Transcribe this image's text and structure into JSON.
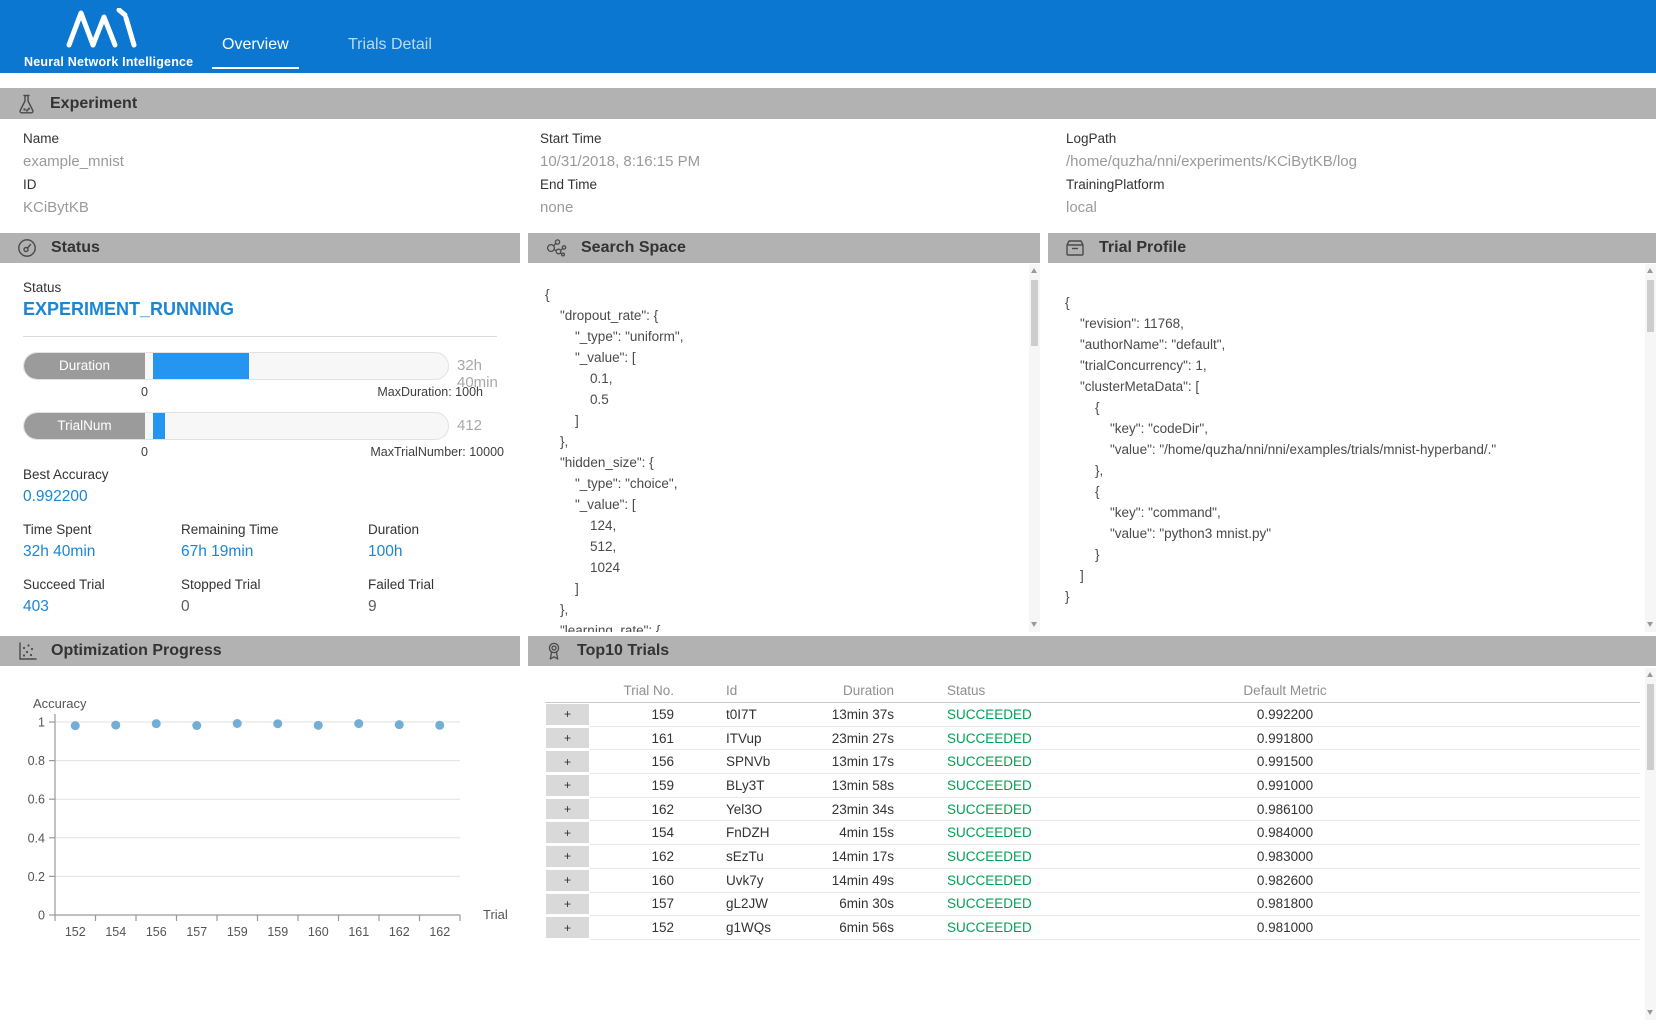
{
  "header": {
    "brand": "Neural Network Intelligence",
    "tabs": [
      {
        "label": "Overview",
        "active": true
      },
      {
        "label": "Trials Detail",
        "active": false
      }
    ]
  },
  "colors": {
    "header_blue": "#0c77d1",
    "accent_blue": "#1a86d4",
    "progress_blue": "#2496f2",
    "succeeded_green": "#00a152",
    "section_header_gray": "#b2b2b2",
    "scatter_point_blue": "#64a5d3"
  },
  "icons": {
    "logo": "nni-logo-icon",
    "experiment": "flask-icon",
    "status": "gauge-icon",
    "search_space": "molecule-icon",
    "trial_profile": "window-icon",
    "optimization": "scatter-chart-icon",
    "top10": "medal-icon"
  },
  "experiment": {
    "title": "Experiment",
    "fields": [
      {
        "label": "Name",
        "value": "example_mnist"
      },
      {
        "label": "ID",
        "value": "KCiBytKB"
      },
      {
        "label": "Start Time",
        "value": "10/31/2018, 8:16:15 PM"
      },
      {
        "label": "End Time",
        "value": "none"
      },
      {
        "label": "LogPath",
        "value": "/home/quzha/nni/experiments/KCiBytKB/log"
      },
      {
        "label": "TrainingPlatform",
        "value": "local"
      }
    ]
  },
  "status_panel": {
    "title": "Status",
    "status_label": "Status",
    "status_value": "EXPERIMENT_RUNNING",
    "bars": [
      {
        "label": "Duration",
        "value_text": "32h 40min",
        "min_label": "0",
        "max_label": "MaxDuration: 100h",
        "percent": 32.7
      },
      {
        "label": "TrialNum",
        "value_text": "412",
        "min_label": "0",
        "max_label": "MaxTrialNumber: 10000",
        "percent": 4.1
      }
    ],
    "best_accuracy_label": "Best Accuracy",
    "best_accuracy_value": "0.992200",
    "stats": [
      {
        "label": "Time Spent",
        "value": "32h 40min",
        "blue": true
      },
      {
        "label": "Remaining Time",
        "value": "67h 19min",
        "blue": true
      },
      {
        "label": "Duration",
        "value": "100h",
        "blue": true
      },
      {
        "label": "Succeed Trial",
        "value": "403",
        "blue": true
      },
      {
        "label": "Stopped Trial",
        "value": "0",
        "blue": false
      },
      {
        "label": "Failed Trial",
        "value": "9",
        "blue": false
      }
    ]
  },
  "search_space": {
    "title": "Search Space",
    "json_lines": [
      "{",
      "    \"dropout_rate\": {",
      "        \"_type\": \"uniform\",",
      "        \"_value\": [",
      "            0.1,",
      "            0.5",
      "        ]",
      "    },",
      "    \"hidden_size\": {",
      "        \"_type\": \"choice\",",
      "        \"_value\": [",
      "            124,",
      "            512,",
      "            1024",
      "        ]",
      "    },",
      "    \"learning_rate\": {"
    ]
  },
  "trial_profile": {
    "title": "Trial Profile",
    "json_lines": [
      "{",
      "    \"revision\": 11768,",
      "    \"authorName\": \"default\",",
      "    \"trialConcurrency\": 1,",
      "    \"clusterMetaData\": [",
      "        {",
      "            \"key\": \"codeDir\",",
      "            \"value\": \"/home/quzha/nni/nni/examples/trials/mnist-hyperband/.\"",
      "        },",
      "        {",
      "            \"key\": \"command\",",
      "            \"value\": \"python3 mnist.py\"",
      "        }",
      "    ]",
      "}"
    ]
  },
  "optimization": {
    "title": "Optimization Progress"
  },
  "chart_data": {
    "type": "scatter",
    "title": "Optimization Progress",
    "xlabel": "Trial",
    "ylabel": "Accuracy",
    "categories": [
      "152",
      "154",
      "156",
      "157",
      "159",
      "159",
      "160",
      "161",
      "162",
      "162"
    ],
    "values": [
      0.981,
      0.984,
      0.9915,
      0.9818,
      0.9922,
      0.991,
      0.9826,
      0.9918,
      0.9861,
      0.983
    ],
    "yticks": [
      0,
      0.2,
      0.4,
      0.6,
      0.8,
      1
    ],
    "ylim": [
      0,
      1
    ],
    "grid": true,
    "legend": "none",
    "point_color": "#64a5d3"
  },
  "top10": {
    "title": "Top10 Trials",
    "expand_symbol": "+",
    "columns": [
      "Trial No.",
      "Id",
      "Duration",
      "Status",
      "Default Metric"
    ],
    "rows": [
      {
        "trial_no": "159",
        "id": "t0I7T",
        "duration": "13min 37s",
        "status": "SUCCEEDED",
        "metric": "0.992200"
      },
      {
        "trial_no": "161",
        "id": "ITVup",
        "duration": "23min 27s",
        "status": "SUCCEEDED",
        "metric": "0.991800"
      },
      {
        "trial_no": "156",
        "id": "SPNVb",
        "duration": "13min 17s",
        "status": "SUCCEEDED",
        "metric": "0.991500"
      },
      {
        "trial_no": "159",
        "id": "BLy3T",
        "duration": "13min 58s",
        "status": "SUCCEEDED",
        "metric": "0.991000"
      },
      {
        "trial_no": "162",
        "id": "Yel3O",
        "duration": "23min 34s",
        "status": "SUCCEEDED",
        "metric": "0.986100"
      },
      {
        "trial_no": "154",
        "id": "FnDZH",
        "duration": "4min 15s",
        "status": "SUCCEEDED",
        "metric": "0.984000"
      },
      {
        "trial_no": "162",
        "id": "sEzTu",
        "duration": "14min 17s",
        "status": "SUCCEEDED",
        "metric": "0.983000"
      },
      {
        "trial_no": "160",
        "id": "Uvk7y",
        "duration": "14min 49s",
        "status": "SUCCEEDED",
        "metric": "0.982600"
      },
      {
        "trial_no": "157",
        "id": "gL2JW",
        "duration": "6min 30s",
        "status": "SUCCEEDED",
        "metric": "0.981800"
      },
      {
        "trial_no": "152",
        "id": "g1WQs",
        "duration": "6min 56s",
        "status": "SUCCEEDED",
        "metric": "0.981000"
      }
    ]
  }
}
